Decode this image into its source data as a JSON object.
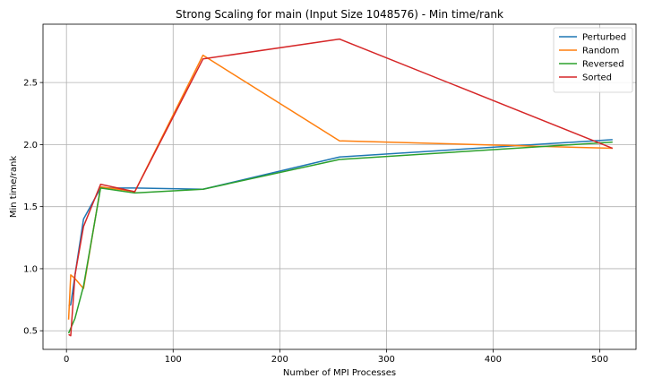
{
  "chart_data": {
    "type": "line",
    "title": "Strong Scaling for main (Input Size 1048576) - Min time/rank",
    "xlabel": "Number of MPI Processes",
    "ylabel": "Min time/rank",
    "xlim": [
      -22,
      534
    ],
    "ylim": [
      0.35,
      2.97
    ],
    "xticks": [
      0,
      100,
      200,
      300,
      400,
      500
    ],
    "yticks": [
      0.5,
      1.0,
      1.5,
      2.0,
      2.5
    ],
    "ytick_labels": [
      "0.5",
      "1.0",
      "1.5",
      "2.0",
      "2.5"
    ],
    "grid": true,
    "legend_position": "top-right",
    "x": [
      2,
      4,
      8,
      16,
      32,
      64,
      128,
      256,
      512
    ],
    "series": [
      {
        "name": "Perturbed",
        "color": "#1f77b4",
        "values": [
          0.7,
          0.71,
          0.95,
          1.4,
          1.65,
          1.65,
          1.64,
          1.9,
          2.04
        ]
      },
      {
        "name": "Random",
        "color": "#ff7f0e",
        "values": [
          0.59,
          0.95,
          0.92,
          0.84,
          1.66,
          1.62,
          2.72,
          2.03,
          1.97
        ]
      },
      {
        "name": "Reversed",
        "color": "#2ca02c",
        "values": [
          0.48,
          0.52,
          0.6,
          0.86,
          1.65,
          1.61,
          1.64,
          1.88,
          2.02
        ]
      },
      {
        "name": "Sorted",
        "color": "#d62728",
        "values": [
          0.47,
          0.46,
          0.95,
          1.34,
          1.68,
          1.62,
          2.69,
          2.85,
          1.97
        ]
      }
    ]
  }
}
